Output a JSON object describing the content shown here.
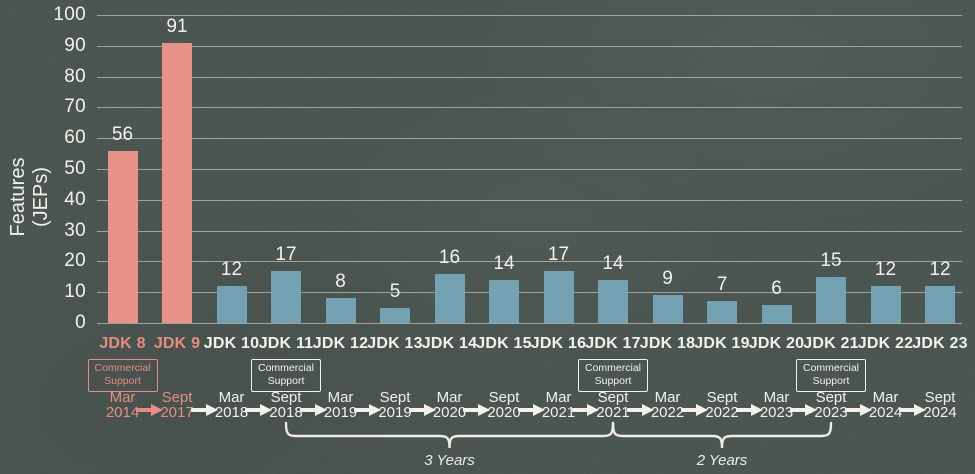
{
  "colors": {
    "background": "#46504d",
    "bar_default": "#74a2b2",
    "bar_highlight": "#e8938a",
    "text_light": "#f3f1ea",
    "text_highlight": "#e58d84",
    "gridline": "rgba(244,242,234,0.5)",
    "bracket_stroke": "#efece2"
  },
  "y_axis": {
    "title_line1": "Features",
    "title_line2": "(JEPs)",
    "ticks": [
      0,
      10,
      20,
      30,
      40,
      50,
      60,
      70,
      80,
      90,
      100
    ]
  },
  "chart_data": {
    "type": "bar",
    "title": "",
    "xlabel": "",
    "ylabel": "Features (JEPs)",
    "ylim": [
      0,
      100
    ],
    "grid": true,
    "categories": [
      "JDK 8",
      "JDK 9",
      "JDK 10",
      "JDK 11",
      "JDK 12",
      "JDK 13",
      "JDK 14",
      "JDK 15",
      "JDK 16",
      "JDK 17",
      "JDK 18",
      "JDK 19",
      "JDK 20",
      "JDK 21",
      "JDK 22",
      "JDK 23"
    ],
    "values": [
      56,
      91,
      12,
      17,
      8,
      5,
      16,
      14,
      17,
      14,
      9,
      7,
      6,
      15,
      12,
      12
    ],
    "highlighted_categories": [
      "JDK 8",
      "JDK 9"
    ],
    "releases": [
      {
        "label": "JDK 8",
        "value": 56,
        "month": "Mar",
        "year": "2014",
        "highlight": true,
        "commercial_support": true
      },
      {
        "label": "JDK 9",
        "value": 91,
        "month": "Sept",
        "year": "2017",
        "highlight": true,
        "commercial_support": false
      },
      {
        "label": "JDK 10",
        "value": 12,
        "month": "Mar",
        "year": "2018",
        "highlight": false,
        "commercial_support": false
      },
      {
        "label": "JDK 11",
        "value": 17,
        "month": "Sept",
        "year": "2018",
        "highlight": false,
        "commercial_support": true
      },
      {
        "label": "JDK 12",
        "value": 8,
        "month": "Mar",
        "year": "2019",
        "highlight": false,
        "commercial_support": false
      },
      {
        "label": "JDK 13",
        "value": 5,
        "month": "Sept",
        "year": "2019",
        "highlight": false,
        "commercial_support": false
      },
      {
        "label": "JDK 14",
        "value": 16,
        "month": "Mar",
        "year": "2020",
        "highlight": false,
        "commercial_support": false
      },
      {
        "label": "JDK 15",
        "value": 14,
        "month": "Sept",
        "year": "2020",
        "highlight": false,
        "commercial_support": false
      },
      {
        "label": "JDK 16",
        "value": 17,
        "month": "Mar",
        "year": "2021",
        "highlight": false,
        "commercial_support": false
      },
      {
        "label": "JDK 17",
        "value": 14,
        "month": "Sept",
        "year": "2021",
        "highlight": false,
        "commercial_support": true
      },
      {
        "label": "JDK 18",
        "value": 9,
        "month": "Mar",
        "year": "2022",
        "highlight": false,
        "commercial_support": false
      },
      {
        "label": "JDK 19",
        "value": 7,
        "month": "Sept",
        "year": "2022",
        "highlight": false,
        "commercial_support": false
      },
      {
        "label": "JDK 20",
        "value": 6,
        "month": "Mar",
        "year": "2023",
        "highlight": false,
        "commercial_support": false
      },
      {
        "label": "JDK 21",
        "value": 15,
        "month": "Sept",
        "year": "2023",
        "highlight": false,
        "commercial_support": true
      },
      {
        "label": "JDK 22",
        "value": 12,
        "month": "Mar",
        "year": "2024",
        "highlight": false,
        "commercial_support": false
      },
      {
        "label": "JDK 23",
        "value": 12,
        "month": "Sept",
        "year": "2024",
        "highlight": false,
        "commercial_support": false
      }
    ]
  },
  "commercial_support_box": {
    "line1": "Commercial",
    "line2": "Support"
  },
  "timeline": {
    "highlight_arrow_index": 0
  },
  "brackets": [
    {
      "label": "3 Years",
      "from_date": "Sept 2018",
      "to_date": "Sept 2021",
      "from_index": 3,
      "to_index": 9
    },
    {
      "label": "2 Years",
      "from_date": "Sept 2021",
      "to_date": "Sept 2023",
      "from_index": 9,
      "to_index": 13
    }
  ]
}
